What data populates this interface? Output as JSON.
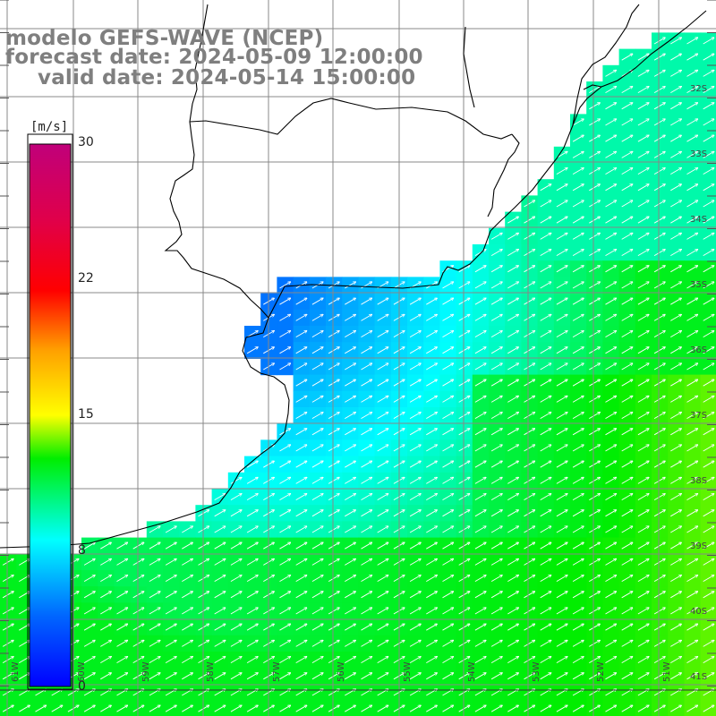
{
  "title": {
    "model": "modelo GEFS-WAVE (NCEP)",
    "forecast": "forecast date: 2024-05-09 12:00:00",
    "valid": "valid date: 2024-05-14 15:00:00"
  },
  "colorbar": {
    "unit": "[m/s]",
    "ticks": [
      "30",
      "22",
      "15",
      "8",
      "0"
    ],
    "min": 0,
    "max": 30
  },
  "axes": {
    "lat_labels": [
      "32S",
      "33S",
      "34S",
      "35S",
      "36S",
      "37S",
      "38S",
      "39S",
      "40S",
      "41S"
    ],
    "lon_labels": [
      "61W",
      "60W",
      "59W",
      "58W",
      "57W",
      "56W",
      "55W",
      "54W",
      "53W",
      "52W",
      "51W"
    ]
  },
  "colors": {
    "land": "#ffffff",
    "grid": "#888888",
    "coast": "#000000",
    "title": "#7f7f7f",
    "arrows": "#ffffff"
  },
  "field": {
    "variable": "wind speed",
    "units": "m/s",
    "typical_range": [
      3,
      13
    ],
    "wind_direction": "from southwest toward northeast",
    "nearshore_speed": 4,
    "offshore_speed": 12
  }
}
